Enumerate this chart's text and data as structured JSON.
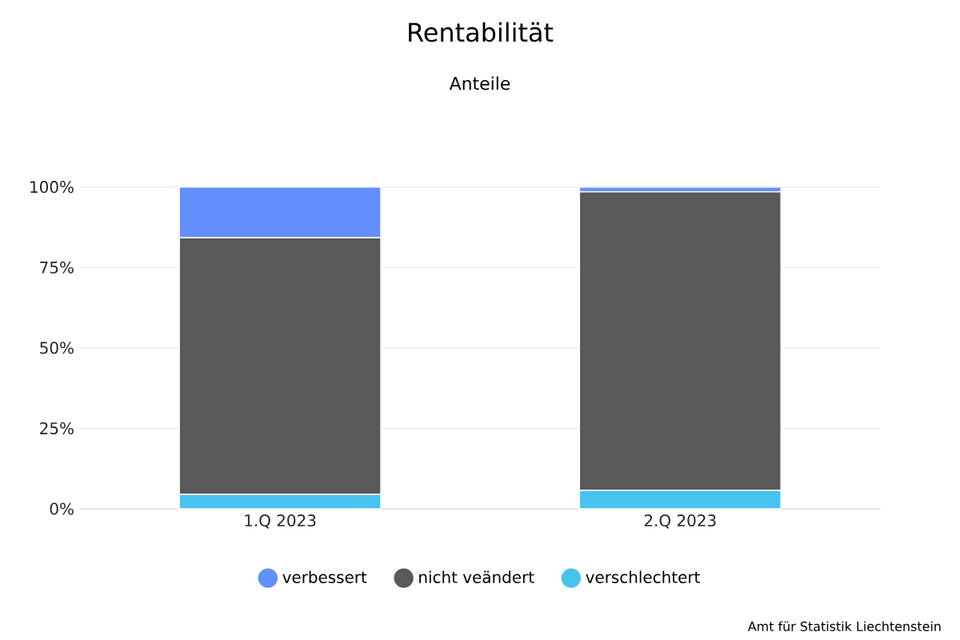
{
  "chart_data": {
    "type": "bar",
    "title": "Rentabilität",
    "subtitle": "Anteile",
    "stacked": true,
    "categories": [
      "1.Q 2023",
      "2.Q 2023"
    ],
    "series": [
      {
        "name": "verschlechtert",
        "color": "#47c3f0",
        "values": [
          4.5,
          5.7
        ]
      },
      {
        "name": "nicht veändert",
        "color": "#59595b",
        "values": [
          79.7,
          92.8
        ]
      },
      {
        "name": "verbessert",
        "color": "#6490fe",
        "values": [
          15.8,
          1.5
        ]
      }
    ],
    "ylim": [
      0,
      100
    ],
    "yticks": [
      {
        "value": 0,
        "label": "0%"
      },
      {
        "value": 25,
        "label": "25%"
      },
      {
        "value": 50,
        "label": "50%"
      },
      {
        "value": 75,
        "label": "75%"
      },
      {
        "value": 100,
        "label": "100%"
      }
    ],
    "grid": "y",
    "legend": "bottom",
    "marker": "circle",
    "annotations": [
      "Amt für Statistik Liechtenstein"
    ]
  }
}
